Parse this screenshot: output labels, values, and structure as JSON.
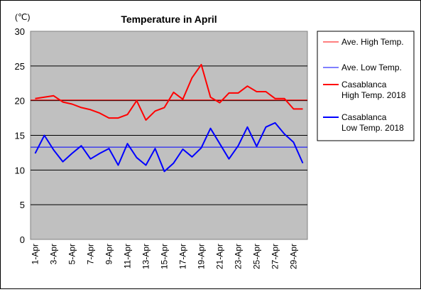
{
  "chart_data": {
    "type": "line",
    "title": "Temperature in April",
    "unit_label": "(℃)",
    "ylim": [
      0,
      30
    ],
    "y_ticks": [
      0,
      5,
      10,
      15,
      20,
      25,
      30
    ],
    "grid": "horizontal",
    "legend_position": "right",
    "categories": [
      "1-Apr",
      "2-Apr",
      "3-Apr",
      "4-Apr",
      "5-Apr",
      "6-Apr",
      "7-Apr",
      "8-Apr",
      "9-Apr",
      "10-Apr",
      "11-Apr",
      "12-Apr",
      "13-Apr",
      "14-Apr",
      "15-Apr",
      "16-Apr",
      "17-Apr",
      "18-Apr",
      "19-Apr",
      "20-Apr",
      "21-Apr",
      "22-Apr",
      "23-Apr",
      "24-Apr",
      "25-Apr",
      "26-Apr",
      "27-Apr",
      "28-Apr",
      "29-Apr",
      "30-Apr"
    ],
    "x_tick_labels": [
      "1-Apr",
      "",
      "3-Apr",
      "",
      "5-Apr",
      "",
      "7-Apr",
      "",
      "9-Apr",
      "",
      "11-Apr",
      "",
      "13-Apr",
      "",
      "15-Apr",
      "",
      "17-Apr",
      "",
      "19-Apr",
      "",
      "21-Apr",
      "",
      "23-Apr",
      "",
      "25-Apr",
      "",
      "27-Apr",
      "",
      "29-Apr",
      ""
    ],
    "series": [
      {
        "name": "Ave. High Temp.",
        "kind": "reference",
        "color": "#ff0000",
        "values": [
          20.1,
          20.1,
          20.1,
          20.1,
          20.1,
          20.1,
          20.1,
          20.1,
          20.1,
          20.1,
          20.1,
          20.1,
          20.1,
          20.1,
          20.1,
          20.1,
          20.1,
          20.1,
          20.1,
          20.1,
          20.1,
          20.1,
          20.1,
          20.1,
          20.1,
          20.1,
          20.1,
          20.1,
          20.1,
          20.1
        ]
      },
      {
        "name": "Ave. Low Temp.",
        "kind": "reference",
        "color": "#0000ff",
        "values": [
          13.3,
          13.3,
          13.3,
          13.3,
          13.3,
          13.3,
          13.3,
          13.3,
          13.3,
          13.3,
          13.3,
          13.3,
          13.3,
          13.3,
          13.3,
          13.3,
          13.3,
          13.3,
          13.3,
          13.3,
          13.3,
          13.3,
          13.3,
          13.3,
          13.3,
          13.3,
          13.3,
          13.3,
          13.3,
          13.3
        ]
      },
      {
        "name": "Casablanca\nHigh Temp. 2018",
        "kind": "measured",
        "color": "#ff0000",
        "values": [
          20.3,
          20.5,
          20.7,
          19.8,
          19.5,
          19.0,
          18.7,
          18.2,
          17.5,
          17.5,
          18.0,
          20.0,
          17.2,
          18.5,
          19.0,
          21.2,
          20.2,
          23.3,
          25.2,
          20.5,
          19.7,
          21.1,
          21.1,
          22.1,
          21.3,
          21.3,
          20.3,
          20.3,
          18.8,
          18.8
        ]
      },
      {
        "name": "Casablanca\nLow Temp. 2018",
        "kind": "measured",
        "color": "#0000ff",
        "values": [
          12.4,
          15.0,
          12.9,
          11.2,
          12.4,
          13.5,
          11.6,
          12.4,
          13.1,
          10.7,
          13.8,
          11.8,
          10.7,
          13.1,
          9.8,
          11.0,
          13.0,
          11.9,
          13.2,
          16.0,
          13.8,
          11.6,
          13.5,
          16.2,
          13.4,
          16.2,
          16.8,
          15.2,
          14.0,
          11.0
        ]
      }
    ]
  }
}
